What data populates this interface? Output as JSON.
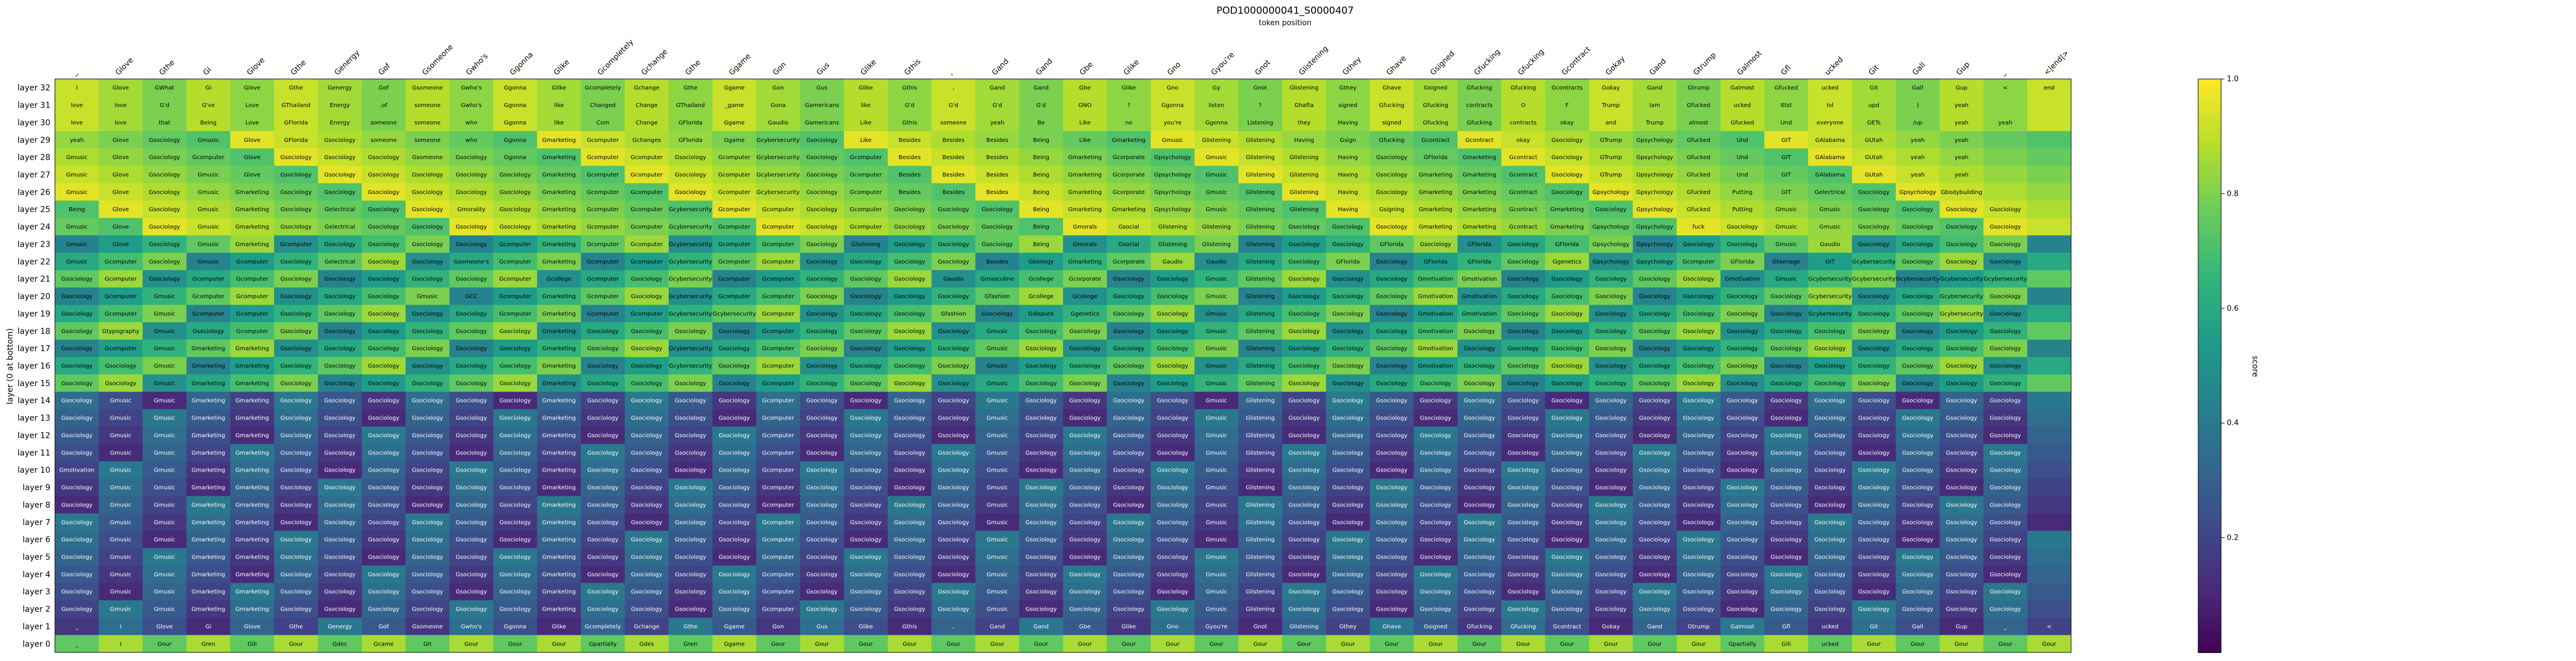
{
  "chart_data": {
    "type": "heatmap",
    "title": "POD1000000041_S0000407",
    "subtitle": "token position",
    "ylabel": "layer (0 at bottom)",
    "colorbar_label": "score",
    "colorbar_ticks": [
      "0.2",
      "0.4",
      "0.6",
      "0.8",
      "1.0"
    ],
    "colorbar_tick_values": [
      0.2,
      0.4,
      0.6,
      0.8,
      1.0
    ],
    "colorscale": "viridis",
    "vmin": 0.0,
    "vmax": 1.0,
    "x_tokens": [
      "_",
      "Glove",
      "Gthe",
      "Gi",
      "Glove",
      "Gthe",
      "Genergy",
      "Gof",
      "Gsomeone",
      "Gwho's",
      "Ggonna",
      "Glike",
      "Gcompletely",
      "Gchange",
      "Gthe",
      "Ggame",
      "Gon",
      "Gus",
      "Glike",
      "Gthis",
      ",",
      "Gand",
      "Gand",
      "Gbe",
      "Glike",
      "Gno",
      "Gyou're",
      "Gnot",
      "Glistening",
      "Gthey",
      "Ghave",
      "Gsigned",
      "Gfucking",
      "Gfucking",
      "Gcontract",
      "Gokay",
      "Gand",
      "Gtrump",
      "Galmost",
      "Gfl",
      "ucked",
      "Git",
      "Gall",
      "Gup",
      "_",
      "<|end|>"
    ],
    "layers": [
      "layer 32",
      "layer 31",
      "layer 30",
      "layer 29",
      "layer 28",
      "layer 27",
      "layer 26",
      "layer 25",
      "layer 24",
      "layer 23",
      "layer 22",
      "layer 21",
      "layer 20",
      "layer 19",
      "layer 18",
      "layer 17",
      "layer 16",
      "layer 15",
      "layer 14",
      "layer 13",
      "layer 12",
      "layer 11",
      "layer 10",
      "layer 9",
      "layer 8",
      "layer 7",
      "layer 6",
      "layer 5",
      "layer 4",
      "layer 3",
      "layer 2",
      "layer 1",
      "layer 0"
    ],
    "row_texts": [
      "I|Glove|GWhat|Gi|Glove|Gthe|Genergy|Gof|Gsomeone|Gwho's|Ggonna|Glike|Gcompletely|Gchange|Gthe|Ggame|Gon|Gus|Glike|Gthis|,|Gand|Gand|Gbe|Glike|Gno|Gy|Gnot|Glistening|Gthey|Ghave|Gsigned|Gfucking|Gfucking|Gcontracts|Gokay|Gand|Gtrump|Galmost|Gfucked|ucked|Git|Gall|Gup|<|end|>|<|end|>",
      "love|love|G'd|G've|Love|GThailand|Energy|,of|someone|Gwho's|Ggonna|like|Changed|Change|GThailand|_game|Gona|Gamericans|like|G'd|G'd|G'd|G'd|GNO|?|Ggonna|listen|?|Ghafta|signed|Gfucking|Gfucking|contracts|O|F|Trump|Iam|Gfucked|ucked|Ittst|lol|upd|)|yeah",
      "love|love|that|Being|Love|GFlorida|Energy|someone|someone|who|Ggonna|like|Com|Change|GFlorida|Ggame|Gaudio|Gamericans|Like|Gthis|someone|yeah|Be|Like|no|you're|Ggonna|Listening|they|Having|signed|Gfucking|Gfucking|contracts|okay|and|Trump|almost|Gfucked|Und|everyone|GETs|/up|yeah|yeah",
      "yeah|Glove|Gsociology|Gmusic|Glove|GFlorida|Gsociology|someone|someone|who|Ggonna|Gmarketing|Gcomputer|Gchanges|GFlorida|Ggame|Gcybersecurity|Gsociology|Like|Besides|Besides|Besides|Being|Like|Gmarketing|Gmusic|Glistening|Glistening|Having|Gsign|Gfucking|Gcontract|Gcontract|okay|Gsociology|GTrump|Gpsychology|Gfucked|Und|GIT|GAlabama|GUtah|yeah|yeah",
      "Gmusic|Glove|Gsociology|Gcomputer|Glove|Gsociology|Gsociology|Gsociology|Gsomeone|Gsociology|Ggonna|Gmarketing|Gcomputer|Gcomputer|Gsociology|Gcomputer|Gcybersecurity|Gsociology|Gcomputer|Besides|Besides|Besides|Being|Gmarketing|Gcorporate|Gpsychology|Gmusic|Glistening|Glistening|Having|Gsociology|GFlorida|Gmarketing|Gcontract|Gsociology|GTrump|Gpsychology|Gfucked|Und|GIT|GAlabama|GUtah|yeah|yeah",
      "Gmusic|Glove|Gsociology|Gmusic|Glove|Gsociology|Gsociology|Gsociology|Gsociology|Gsociology|Gsociology|Gmarketing|Gcomputer|Gcomputer|Gsociology|Gcomputer|Gcybersecurity|Gsociology|Gcomputer|Besides|Besides|Besides|Being|Gmarketing|Gcorporate|Gpsychology|Gmusic|Glistening|Glistening|Having|Gsociology|Gmarketing|Gmarketing|Gcontract|Gsociology|GTrump|Gpsychology|Gfucked|Und|GIT|GAlabama|GUtah|yeah|yeah",
      "Gmusic|Glove|Gsociology|Gmusic|Gmarketing|Gsociology|Gsociology|Gsociology|Gsociology|Gsociology|Gsociology|Gmarketing|Gcomputer|Gcomputer|Gsociology|Gcomputer|Gcybersecurity|Gsociology|Gcomputer|Besides|Besides|Besides|Being|Gmarketing|Gcorporate|Gpsychology|Gmusic|Glistening|Glistening|Having|Gsociology|Gmarketing|Gmarketing|Gcontract|Gsociology|Gpsychology|Gpsychology|Gfucked|Putting|GIT|Gelectrical|Gsociology|Gpsychology|Gbodybuilding",
      "Being|Glove|Gsociology|Gmusic|Gmarketing|Gsociology|Gelectrical|Gsociology|Gsociology|Gmorality|Gsociology|Gmarketing|Gcomputer|Gcomputer|Gcybersecurity|Gcomputer|Gcomputer|Gsociology|Gcomputer|Gsociology|Gsociology|Gsociology|Being|Gmarketing|Gmarketing|Gpsychology|Gmusic|Glistening|Glistening|Having|Gsigning|Gmarketing|Gmarketing|Gcontract|Gmarketing|Gsociology|Gpsychology|Gfucked|Putting|Gmusic|Gmusic|Gsociology|Gsociology|Gsociology|Gsociology",
      "Gmusic|Glove|Gsociology|Gmusic|Gmarketing|Gsociology|Gelectrical|Gsociology|Gsociology|Gsociology|Gsociology|Gmarketing|Gcomputer|Gcomputer|Gcybersecurity|Gcomputer|Gcomputer|Gsociology|Gcomputer|Gsociology|Gsociology|Gsociology|Being|Gmorals|Gsocial|Glistening|Glistening|Glistening|Gsociology|Gsociology|Gsociology|Gmarketing|Gmarketing|Gcontract|Gmarketing|Gpsychology|Gpsychology|fuck|Gsociology|Gmusic|Gmusic|Gsociology|Gsociology|Gsociology|Gsociology",
      "Gmusic|Glove|Gsociology|Gmusic|Gmarketing|Gcomputer|Gsociology|Gsociology|Gsociology|Gsociology|Gcomputer|Gmarketing|Gcomputer|Gcomputer|Gcybersecurity|Gcomputer|Gcomputer|Gsociology|Glistening|Gsociology|Gsociology|Gsociology|Being|Gmorals|Gsocial|Glistening|Glistening|Glistening|Gsociology|Gsociology|GFlorida|Gsociology|GFlorida|Gsociology|GFlorida|Gpsychology|Gpsychology|Gsociology|Gsociology|Gmusic|Gaudio|Gsociology|Gsociology|Gsociology|Gsociology",
      "Gmusic|Gcomputer|Gsociology|Gmusic|Gcomputer|Gsociology|Gelectrical|Gsociology|Gsociology|Gsomeone's|Gcomputer|Gmarketing|Gcomputer|Gcomputer|Gcybersecurity|Gcomputer|Gcomputer|Gsociology|Gsociology|Gsociology|Gsociology|Besides|Gbiology|Gmarketing|Gcorporate|Gaudio|Gaudio|Glistening|Gsociology|GFlorida|Gsociology|GFlorida|GFlorida|Gsociology|Ggenetics|Gpsychology|Gpsychology|Gcomputer|GFlorida|Gteenage|GIT|Gcybersecurity|Gsociology|Gsociology|Gsociology",
      "Gsociology|Gcomputer|Gsociology|Gcomputer|Gcomputer|Gsociology|Gsociology|Gsociology|Gsociology|Gsociology|Gcomputer|Gcollege|Gcomputer|Gsociology|Gcybersecurity|Gcomputer|Gcomputer|Gsociology|Gsociology|Gsociology|Gaudio|Gmasculine|Gcollege|Gcorporate|Gsociology|Gsociology|Gmusic|Glistening|Gsociology|Gsociology|Gsociology|Gmotivation|Gmotivation|Gsociology|Gsociology|Gsociology|Gsociology|Gsociology|Gmotivation|Gmusic|Gcybersecurity|Gcybersecurity|Gcybersecurity|Gcybersecurity|Gcybersecurity",
      "Gsociology|Gcomputer|Gmusic|Gcomputer|Gcomputer|Gsociology|Gsociology|Gsociology|Gmusic|GCC|Gcomputer|Gmarketing|Gcomputer|Gsociology|Gcybersecurity|Gcomputer|Gcomputer|Gsociology|Gsociology|Gsociology|Gsociology|Gfashion|Gcollege|Gcollege|Gsociology|Gsociology|Gmusic|Glistening|Gsociology|Gsociology|Gsociology|Gmotivation|Gmotivation|Gsociology|Gsociology|Gsociology|Gsociology|Gsociology|Gsociology|Gsociology|Gcybersecurity|Gsociology|Gsociology|Gcybersecurity|Gsociology",
      "Gsociology|Gcomputer|Gmusic|Gcomputer|Gcomputer|Gsociology|Gsociology|Gsociology|Gsociology|Gsociology|Gcomputer|Gmarketing|Gcomputer|Gcomputer|Gcybersecurity|Gcybersecurity|Gcomputer|Gsociology|Gsociology|Gsociology|Gfashion|Gsociology|Gdispute|Ggenetics|Gsociology|Gsociology|Gmusic|Glistening|Gsociology|Gsociology|Gsociology|Gmotivation|Gmotivation|Gsociology|Gsociology|Gsociology|Gsociology|Gsociology|Gsociology|Gsociology|Gcybersecurity|Gsociology|Gsociology|Gcybersecurity|Gsociology",
      "Gsociology|Gtypography|Gmusic|Gsociology|Gcomputer|Gsociology|Gsociology|Gsociology|Gsociology|Gsociology|Gsociology|Gmarketing|Gsociology|Gsociology|Gsociology|Gsociology|Gcomputer|Gsociology|Gsociology|Gsociology|Gsociology|Gmusic|Gsociology|Gsociology|Gsociology|Gsociology|Gmusic|Glistening|Gsociology|Gsociology|Gsociology|Gmotivation|Gsociology|Gsociology|Gsociology|Gsociology|Gsociology|Gsociology|Gsociology|Gsociology|Gsociology|Gsociology|Gsociology|Gsociology|Gsociology",
      "Gsociology|Gcomputer|Gmusic|Gmarketing|Gmarketing|Gsociology|Gsociology|Gsociology|Gsociology|Gsociology|Gsociology|Gmarketing|Gsociology|Gsociology|Gcybersecurity|Gsociology|Gcomputer|Gsociology|Gsociology|Gsociology|Gsociology|Gmusic|Gsociology|Gsociology|Gsociology|Gsociology|Gmusic|Glistening|Gsociology|Gsociology|Gsociology|Gmotivation|Gsociology|Gsociology|Gsociology|Gsociology|Gsociology|Gsociology|Gsociology|Gsociology|Gsociology|Gsociology|Gsociology|Gsociology|Gsociology",
      "Gsociology|Gsociology|Gmusic|Gmarketing|Gmarketing|Gsociology|Gsociology|Gsociology|Gsociology|Gsociology|Gsociology|Gmarketing|Gsociology|Gsociology|Gcybersecurity|Gsociology|Gcomputer|Gsociology|Gsociology|Gsociology|Gsociology|Gmusic|Gsociology|Gsociology|Gsociology|Gsociology|Gmusic|Glistening|Gsociology|Gsociology|Gsociology|Gmotivation|Gsociology|Gsociology|Gsociology|Gsociology|Gsociology|Gsociology|Gsociology|Gsociology|Gsociology|Gsociology|Gsociology|Gsociology|Gsociology",
      "Gsociology|Gsociology|Gmusic|Gmarketing|Gmarketing|Gsociology|Gsociology|Gsociology|Gsociology|Gsociology|Gsociology|Gmarketing|Gsociology|Gsociology|Gsociology|Gsociology|Gcomputer|Gsociology|Gsociology|Gsociology|Gsociology|Gmusic|Gsociology|Gsociology|Gsociology|Gsociology|Gmusic|Glistening|Gsociology|Gsociology|Gsociology|Gsociology|Gsociology|Gsociology|Gsociology|Gsociology|Gsociology|Gsociology|Gsociology|Gsociology|Gsociology|Gsociology|Gsociology|Gsociology|Gsociology",
      "Gsociology|Gmusic|Gmusic|Gmarketing|Gmarketing|Gsociology|Gsociology|Gsociology|Gsociology|Gsociology|Gsociology|Gmarketing|Gsociology|Gsociology|Gsociology|Gsociology|Gcomputer|Gsociology|Gsociology|Gsociology|Gsociology|Gmusic|Gsociology|Gsociology|Gsociology|Gsociology|Gmusic|Glistening|Gsociology|Gsociology|Gsociology|Gsociology|Gsociology|Gsociology|Gsociology|Gsociology|Gsociology|Gsociology|Gsociology|Gsociology|Gsociology|Gsociology|Gsociology|Gsociology|Gsociology",
      "Gsociology|Gmusic|Gmusic|Gmarketing|Gmarketing|Gsociology|Gsociology|Gsociology|Gsociology|Gsociology|Gsociology|Gmarketing|Gsociology|Gsociology|Gsociology|Gsociology|Gcomputer|Gsociology|Gsociology|Gsociology|Gsociology|Gmusic|Gsociology|Gsociology|Gsociology|Gsociology|Gmusic|Glistening|Gsociology|Gsociology|Gsociology|Gsociology|Gsociology|Gsociology|Gsociology|Gsociology|Gsociology|Gsociology|Gsociology|Gsociology|Gsociology|Gsociology|Gsociology|Gsociology|Gsociology",
      "Gsociology|Gmusic|Gmusic|Gmarketing|Gmarketing|Gsociology|Gsociology|Gsociology|Gsociology|Gsociology|Gsociology|Gmarketing|Gsociology|Gsociology|Gsociology|Gsociology|Gcomputer|Gsociology|Gsociology|Gsociology|Gsociology|Gmusic|Gsociology|Gsociology|Gsociology|Gsociology|Gmusic|Glistening|Gsociology|Gsociology|Gsociology|Gsociology|Gsociology|Gsociology|Gsociology|Gsociology|Gsociology|Gsociology|Gsociology|Gsociology|Gsociology|Gsociology|Gsociology|Gsociology|Gsociology",
      "Gsociology|Gmusic|Gmusic|Gmarketing|Gmarketing|Gsociology|Gsociology|Gsociology|Gsociology|Gsociology|Gsociology|Gmarketing|Gsociology|Gsociology|Gsociology|Gsociology|Gcomputer|Gsociology|Gsociology|Gsociology|Gsociology|Gmusic|Gsociology|Gsociology|Gsociology|Gsociology|Gmusic|Glistening|Gsociology|Gsociology|Gsociology|Gsociology|Gsociology|Gsociology|Gsociology|Gsociology|Gsociology|Gsociology|Gsociology|Gsociology|Gsociology|Gsociology|Gsociology|Gsociology|Gsociology",
      "Gmotivation|Gmusic|Gmusic|Gmarketing|Gmarketing|Gsociology|Gsociology|Gsociology|Gsociology|Gsociology|Gsociology|Gmarketing|Gsociology|Gsociology|Gsociology|Gsociology|Gcomputer|Gsociology|Gsociology|Gsociology|Gsociology|Gmusic|Gsociology|Gsociology|Gsociology|Gsociology|Gmusic|Glistening|Gsociology|Gsociology|Gsociology|Gsociology|Gsociology|Gsociology|Gsociology|Gsociology|Gsociology|Gsociology|Gsociology|Gsociology|Gsociology|Gsociology|Gsociology|Gsociology|Gsociology",
      "Gsociology|Gmusic|Gmusic|Gmarketing|Gmarketing|Gsociology|Gsociology|Gsociology|Gsociology|Gsociology|Gsociology|Gmarketing|Gsociology|Gsociology|Gsociology|Gsociology|Gcomputer|Gsociology|Gsociology|Gsociology|Gsociology|Gmusic|Gsociology|Gsociology|Gsociology|Gsociology|Gmusic|Glistening|Gsociology|Gsociology|Gsociology|Gsociology|Gsociology|Gsociology|Gsociology|Gsociology|Gsociology|Gsociology|Gsociology|Gsociology|Gsociology|Gsociology|Gsociology|Gsociology|Gsociology",
      "Gsociology|Gmusic|Gmusic|Gmarketing|Gmarketing|Gsociology|Gsociology|Gsociology|Gsociology|Gsociology|Gsociology|Gmarketing|Gsociology|Gsociology|Gsociology|Gsociology|Gcomputer|Gsociology|Gsociology|Gsociology|Gsociology|Gmusic|Gsociology|Gsociology|Gsociology|Gsociology|Gmusic|Glistening|Gsociology|Gsociology|Gsociology|Gsociology|Gsociology|Gsociology|Gsociology|Gsociology|Gsociology|Gsociology|Gsociology|Gsociology|Gsociology|Gsociology|Gsociology|Gsociology|Gsociology",
      "Gsociology|Gmusic|Gmusic|Gmarketing|Gmarketing|Gsociology|Gsociology|Gsociology|Gsociology|Gsociology|Gsociology|Gmarketing|Gsociology|Gsociology|Gsociology|Gsociology|Gcomputer|Gsociology|Gsociology|Gsociology|Gsociology|Gmusic|Gsociology|Gsociology|Gsociology|Gsociology|Gmusic|Glistening|Gsociology|Gsociology|Gsociology|Gsociology|Gsociology|Gsociology|Gsociology|Gsociology|Gsociology|Gsociology|Gsociology|Gsociology|Gsociology|Gsociology|Gsociology|Gsociology|Gsociology",
      "Gsociology|Gmusic|Gmusic|Gmarketing|Gmarketing|Gsociology|Gsociology|Gsociology|Gsociology|Gsociology|Gsociology|Gmarketing|Gsociology|Gsociology|Gsociology|Gsociology|Gcomputer|Gsociology|Gsociology|Gsociology|Gsociology|Gmusic|Gsociology|Gsociology|Gsociology|Gsociology|Gmusic|Glistening|Gsociology|Gsociology|Gsociology|Gsociology|Gsociology|Gsociology|Gsociology|Gsociology|Gsociology|Gsociology|Gsociology|Gsociology|Gsociology|Gsociology|Gsociology|Gsociology|Gsociology",
      "Gsociology|Gmusic|Gmusic|Gmarketing|Gmarketing|Gsociology|Gsociology|Gsociology|Gsociology|Gsociology|Gsociology|Gmarketing|Gsociology|Gsociology|Gsociology|Gsociology|Gcomputer|Gsociology|Gsociology|Gsociology|Gsociology|Gmusic|Gsociology|Gsociology|Gsociology|Gsociology|Gmusic|Glistening|Gsociology|Gsociology|Gsociology|Gsociology|Gsociology|Gsociology|Gsociology|Gsociology|Gsociology|Gsociology|Gsociology|Gsociology|Gsociology|Gsociology|Gsociology|Gsociology|Gsociology",
      "Gsociology|Gmusic|Gmusic|Gmarketing|Gmarketing|Gsociology|Gsociology|Gsociology|Gsociology|Gsociology|Gsociology|Gmarketing|Gsociology|Gsociology|Gsociology|Gsociology|Gcomputer|Gsociology|Gsociology|Gsociology|Gsociology|Gmusic|Gsociology|Gsociology|Gsociology|Gsociology|Gmusic|Glistening|Gsociology|Gsociology|Gsociology|Gsociology|Gsociology|Gsociology|Gsociology|Gsociology|Gsociology|Gsociology|Gsociology|Gsociology|Gsociology|Gsociology|Gsociology|Gsociology|Gsociology",
      "Gsociology|Gmusic|Gmusic|Gmarketing|Gmarketing|Gsociology|Gsociology|Gsociology|Gsociology|Gsociology|Gsociology|Gmarketing|Gsociology|Gsociology|Gsociology|Gsociology|Gcomputer|Gsociology|Gsociology|Gsociology|Gsociology|Gmusic|Gsociology|Gsociology|Gsociology|Gsociology|Gmusic|Glistening|Gsociology|Gsociology|Gsociology|Gsociology|Gsociology|Gsociology|Gsociology|Gsociology|Gsociology|Gsociology|Gsociology|Gsociology|Gsociology|Gsociology|Gsociology|Gsociology|Gsociology",
      "Gsociology|Gmusic|Gmusic|Gmarketing|Gmarketing|Gsociology|Gsociology|Gsociology|Gsociology|Gsociology|Gsociology|Gmarketing|Gsociology|Gsociology|Gsociology|Gsociology|Gcomputer|Gsociology|Gsociology|Gsociology|Gsociology|Gmusic|Gsociology|Gsociology|Gsociology|Gsociology|Gmusic|Glistening|Gsociology|Gsociology|Gsociology|Gsociology|Gsociology|Gsociology|Gsociology|Gsociology|Gsociology|Gsociology|Gsociology|Gsociology|Gsociology|Gsociology|Gsociology|Gsociology|Gsociology",
      "_|I|Glove|Gi|Glove|Gthe|Genergy|Gof|Gsomeone|Gwho's|Ggonna|Glike|Gcompletely|Gchange|Gthe|Ggame|Gon|Gus|Glike|Gthis|,|Gand|Gand|Gbe|Glike|Gno|Gyou're|Gnot|Glistening|Gthey|Ghave|Gsigned|Gfucking|Gfucking|Gcontract|Gokay|Gand|Gtrump|Galmost|Gfl|ucked|Git|Gall|Gup|_|<|end|>",
      "_|I|Gour|Gren|Gili|Gour|Gdec|Gcame|Git|Gour|Gour|Gour|Gpartially|Gdes|Gren|Ggame|Gour|Gour|Gour|Gour|Gour|Gour|Gour|Gour|Gour|Gour|Gour|Gour|Gour|Gour|Gour|Gour|Gour|Gour|Gour|Gour|Gour|Gour|Gpartially|Gili|ucked|Gour|Gour|Gour|Gour|Gour"
    ]
  }
}
